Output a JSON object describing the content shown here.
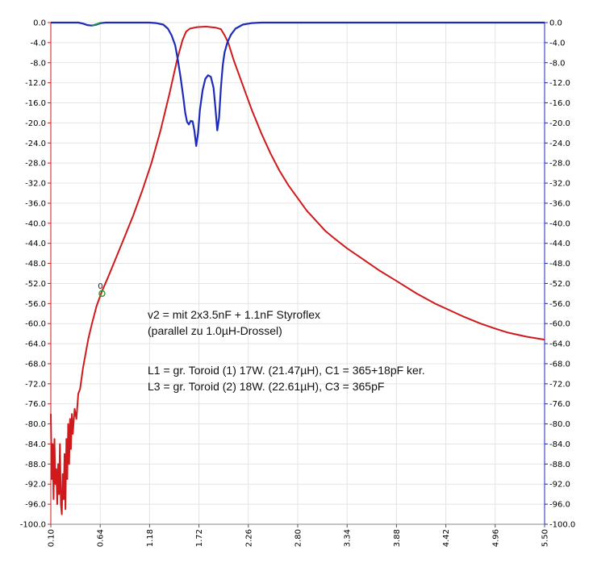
{
  "chart_data": {
    "type": "line",
    "xlim": [
      0.1,
      5.5
    ],
    "ylim": [
      -100,
      0
    ],
    "x_ticks": [
      "0.10",
      "0.64",
      "1.18",
      "1.72",
      "2.26",
      "2.80",
      "3.34",
      "3.88",
      "4.42",
      "4.96",
      "5.50"
    ],
    "y_ticks_left": [
      "0.0",
      "-4.0",
      "-8.0",
      "-12.0",
      "-16.0",
      "-20.0",
      "-24.0",
      "-28.0",
      "-32.0",
      "-36.0",
      "-40.0",
      "-44.0",
      "-48.0",
      "-52.0",
      "-56.0",
      "-60.0",
      "-64.0",
      "-68.0",
      "-72.0",
      "-76.0",
      "-80.0",
      "-84.0",
      "-88.0",
      "-92.0",
      "-96.0",
      "-100.0"
    ],
    "y_ticks_right": [
      "0.0",
      "-4.0",
      "-8.0",
      "-12.0",
      "-16.0",
      "-20.0",
      "-24.0",
      "-28.0",
      "-32.0",
      "-36.0",
      "-40.0",
      "-44.0",
      "-48.0",
      "-52.0",
      "-56.0",
      "-60.0",
      "-64.0",
      "-68.0",
      "-72.0",
      "-76.0",
      "-80.0",
      "-84.0",
      "-88.0",
      "-92.0",
      "-96.0",
      "-100.0"
    ],
    "grid": true,
    "colors": {
      "s21": "#d0191b",
      "s11": "#1d2bb8",
      "trace3": "#1f8a5a",
      "marker": "#2aa02a",
      "axis_left": "#d0191b",
      "axis_right": "#1d2bb8",
      "grid": "#e4e4e4"
    },
    "series": [
      {
        "values_role": "red trace",
        "points": [
          [
            0.1,
            -78
          ],
          [
            0.11,
            -91
          ],
          [
            0.12,
            -84
          ],
          [
            0.13,
            -95
          ],
          [
            0.14,
            -83
          ],
          [
            0.15,
            -92
          ],
          [
            0.16,
            -89
          ],
          [
            0.17,
            -96
          ],
          [
            0.18,
            -88
          ],
          [
            0.19,
            -94
          ],
          [
            0.2,
            -84
          ],
          [
            0.21,
            -96
          ],
          [
            0.22,
            -98
          ],
          [
            0.23,
            -90
          ],
          [
            0.24,
            -95
          ],
          [
            0.25,
            -86
          ],
          [
            0.26,
            -97
          ],
          [
            0.27,
            -83
          ],
          [
            0.28,
            -91
          ],
          [
            0.29,
            -80
          ],
          [
            0.3,
            -88
          ],
          [
            0.31,
            -79
          ],
          [
            0.32,
            -85
          ],
          [
            0.33,
            -78
          ],
          [
            0.34,
            -82
          ],
          [
            0.36,
            -77
          ],
          [
            0.38,
            -79
          ],
          [
            0.4,
            -74
          ],
          [
            0.42,
            -73
          ],
          [
            0.45,
            -69
          ],
          [
            0.48,
            -66
          ],
          [
            0.51,
            -63
          ],
          [
            0.55,
            -60
          ],
          [
            0.6,
            -56.5
          ],
          [
            0.66,
            -53.5
          ],
          [
            0.72,
            -51
          ],
          [
            0.8,
            -47.5
          ],
          [
            0.9,
            -43
          ],
          [
            1.0,
            -38.5
          ],
          [
            1.1,
            -33.5
          ],
          [
            1.2,
            -28
          ],
          [
            1.3,
            -21.5
          ],
          [
            1.4,
            -14
          ],
          [
            1.48,
            -7.5
          ],
          [
            1.54,
            -3.5
          ],
          [
            1.58,
            -1.8
          ],
          [
            1.62,
            -1.2
          ],
          [
            1.7,
            -0.9
          ],
          [
            1.8,
            -0.8
          ],
          [
            1.9,
            -1.0
          ],
          [
            1.96,
            -1.3
          ],
          [
            2.0,
            -2.5
          ],
          [
            2.04,
            -4.0
          ],
          [
            2.1,
            -7.5
          ],
          [
            2.2,
            -12.5
          ],
          [
            2.3,
            -17.5
          ],
          [
            2.4,
            -22
          ],
          [
            2.5,
            -26
          ],
          [
            2.6,
            -29.5
          ],
          [
            2.7,
            -32.5
          ],
          [
            2.8,
            -35
          ],
          [
            2.9,
            -37.5
          ],
          [
            3.0,
            -39.5
          ],
          [
            3.1,
            -41.5
          ],
          [
            3.2,
            -43
          ],
          [
            3.34,
            -45
          ],
          [
            3.5,
            -47
          ],
          [
            3.7,
            -49.5
          ],
          [
            3.88,
            -51.5
          ],
          [
            4.1,
            -54
          ],
          [
            4.3,
            -56
          ],
          [
            4.42,
            -57
          ],
          [
            4.6,
            -58.5
          ],
          [
            4.8,
            -60
          ],
          [
            4.96,
            -61
          ],
          [
            5.1,
            -61.8
          ],
          [
            5.3,
            -62.6
          ],
          [
            5.5,
            -63.2
          ]
        ]
      },
      {
        "values_role": "blue trace",
        "points": [
          [
            0.1,
            0
          ],
          [
            0.4,
            0
          ],
          [
            0.45,
            -0.2
          ],
          [
            0.5,
            -0.5
          ],
          [
            0.55,
            -0.6
          ],
          [
            0.6,
            -0.4
          ],
          [
            0.65,
            -0.1
          ],
          [
            0.7,
            0
          ],
          [
            1.18,
            0
          ],
          [
            1.25,
            -0.1
          ],
          [
            1.33,
            -0.4
          ],
          [
            1.38,
            -1.2
          ],
          [
            1.42,
            -2.5
          ],
          [
            1.46,
            -4.5
          ],
          [
            1.49,
            -7.5
          ],
          [
            1.52,
            -11
          ],
          [
            1.55,
            -15
          ],
          [
            1.57,
            -18
          ],
          [
            1.59,
            -19.8
          ],
          [
            1.61,
            -20.3
          ],
          [
            1.63,
            -19.6
          ],
          [
            1.65,
            -19.7
          ],
          [
            1.67,
            -21.5
          ],
          [
            1.69,
            -24.6
          ],
          [
            1.71,
            -22
          ],
          [
            1.73,
            -17.5
          ],
          [
            1.76,
            -13.5
          ],
          [
            1.79,
            -11.2
          ],
          [
            1.82,
            -10.5
          ],
          [
            1.85,
            -10.8
          ],
          [
            1.88,
            -13
          ],
          [
            1.9,
            -17
          ],
          [
            1.92,
            -21.5
          ],
          [
            1.94,
            -19
          ],
          [
            1.96,
            -13
          ],
          [
            1.98,
            -8.5
          ],
          [
            2.0,
            -6
          ],
          [
            2.03,
            -4
          ],
          [
            2.07,
            -2.4
          ],
          [
            2.12,
            -1.2
          ],
          [
            2.2,
            -0.4
          ],
          [
            2.3,
            -0.1
          ],
          [
            2.4,
            0
          ],
          [
            5.5,
            0
          ]
        ]
      },
      {
        "values_role": "green trace",
        "points": [
          [
            0.55,
            -0.6
          ],
          [
            0.6,
            -0.3
          ],
          [
            0.65,
            0
          ]
        ]
      }
    ],
    "marker": {
      "label": "0",
      "x": 0.66,
      "y": -54.0
    },
    "annotations": [
      "v2 = mit 2x3.5nF + 1.1nF Styroflex",
      "(parallel zu 1.0µH-Drossel)",
      "L1 = gr. Toroid (1) 17W. (21.47µH), C1 = 365+18pF ker.",
      "L3 = gr. Toroid (2) 18W. (22.61µH), C3 = 365pF"
    ]
  }
}
